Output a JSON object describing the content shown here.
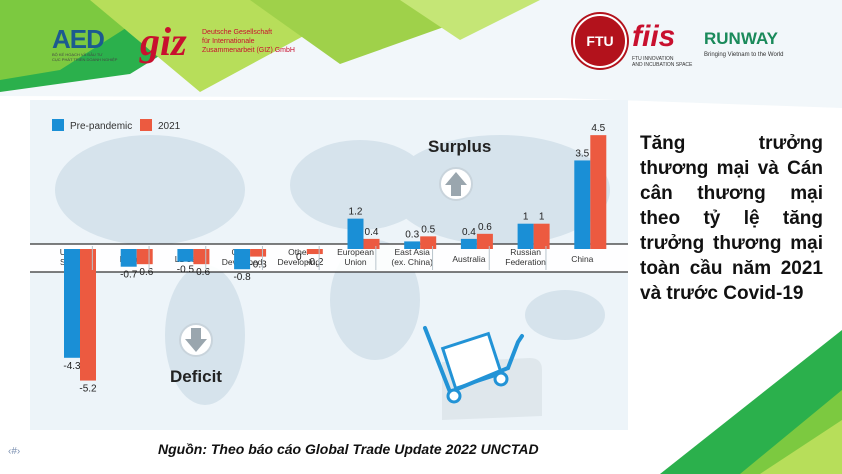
{
  "logos": {
    "aed": {
      "name": "AED",
      "subtitle_1": "BỘ KẾ HOẠCH VÀ ĐẦU TƯ",
      "subtitle_2": "CỤC PHÁT TRIỂN DOANH NGHIỆP"
    },
    "giz": {
      "mark": "giz",
      "text_1": "Deutsche Gesellschaft",
      "text_2": "für Internationale",
      "text_3": "Zusammenarbeit (GIZ) GmbH"
    },
    "ftu": {
      "mark": "FTU"
    },
    "fiis": {
      "mark": "fiis",
      "sub_1": "FTU INNOVATION",
      "sub_2": "AND INCUBATION SPACE"
    },
    "runway": {
      "mark": "RUNWAY",
      "tagline": "Bringing Vietnam to the World"
    }
  },
  "side_text": "Tăng trưởng thương mại và Cán cân thương mại theo tỷ lệ tăng trưởng thương mại toàn cầu năm 2021 và trước Covid-19",
  "source": "Nguồn: Theo báo cáo Global Trade Update 2022 UNCTAD",
  "page_number": "‹#›",
  "chart_data": {
    "type": "bar",
    "categories": [
      "United States",
      "India",
      "LDCs",
      "Other Developed",
      "Other Developing",
      "European Union",
      "East Asia (ex. China)",
      "Australia",
      "Russian Federation",
      "China"
    ],
    "category_lines": [
      [
        "United",
        "States"
      ],
      [
        "India"
      ],
      [
        "LDCs"
      ],
      [
        "Other",
        "Developed"
      ],
      [
        "Other",
        "Developing"
      ],
      [
        "European",
        "Union"
      ],
      [
        "East Asia",
        "(ex. China)"
      ],
      [
        "Australia"
      ],
      [
        "Russian",
        "Federation"
      ],
      [
        "China"
      ]
    ],
    "series": [
      {
        "name": "Pre-pandemic",
        "values": [
          -4.3,
          -0.7,
          -0.5,
          -0.8,
          0,
          1.2,
          0.3,
          0.4,
          1,
          3.5
        ],
        "labels": [
          "-4.3",
          "-0.7",
          "-0.5",
          "-0.8",
          "0",
          "1.2",
          "0.3",
          "0.4",
          "1",
          "3.5"
        ]
      },
      {
        "name": "2021",
        "values": [
          -5.2,
          -0.6,
          -0.6,
          -0.3,
          -0.2,
          0.4,
          0.5,
          0.6,
          1,
          4.5
        ],
        "labels": [
          "-5.2",
          "-0.6",
          "-0.6",
          "-0.3",
          "-0.2",
          "0.4",
          "0.5",
          "0.6",
          "1",
          "4.5"
        ]
      }
    ],
    "annotations": {
      "surplus": "Surplus",
      "deficit": "Deficit"
    },
    "colors": {
      "pre_pandemic": "#1a8fd6",
      "y2021": "#ec5a40"
    },
    "legend_position": "top-left",
    "grid": false
  }
}
